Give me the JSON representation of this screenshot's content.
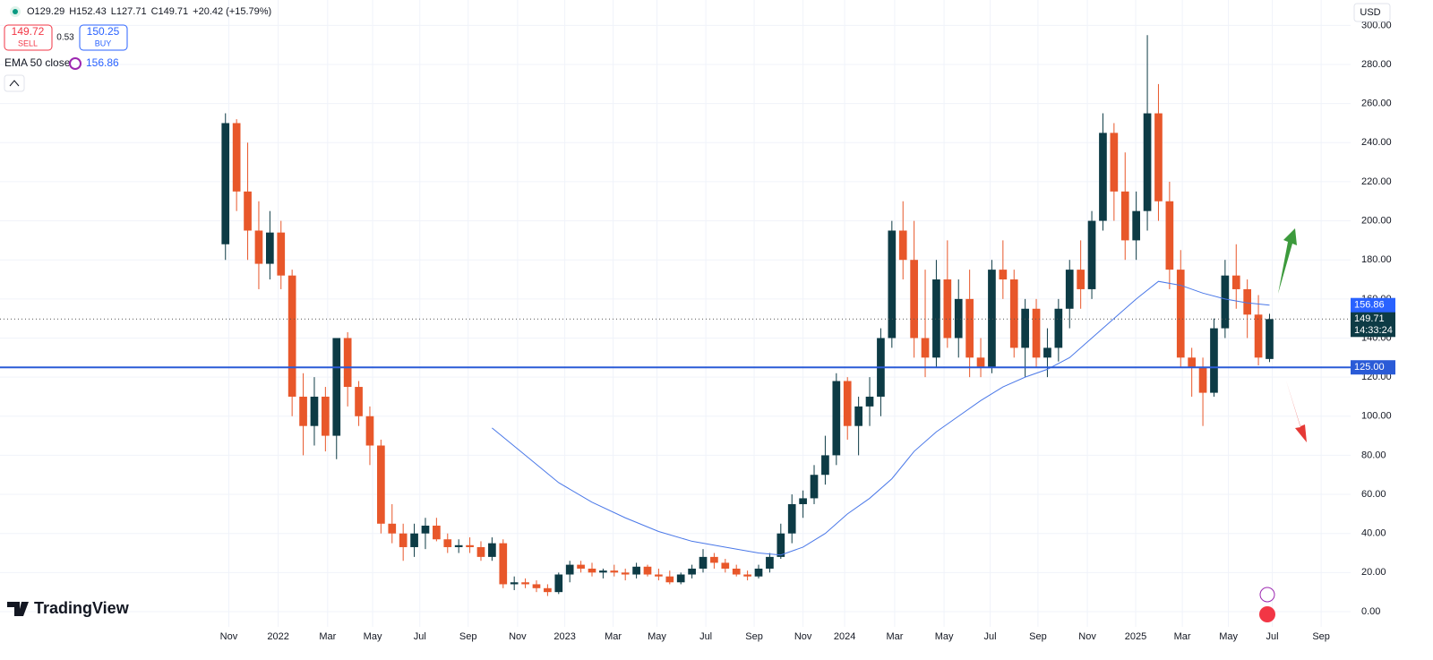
{
  "header": {
    "ohlc": [
      "O129.29",
      "H152.43",
      "L127.71",
      "C149.71"
    ],
    "change": "+20.42 (+15.79%)",
    "sell_price": "149.72",
    "sell": "SELL",
    "spread": "0.53",
    "buy_price": "150.25",
    "buy": "BUY",
    "currency": "USD",
    "brand": "TradingView"
  },
  "chart_data": {
    "type": "candlestick",
    "up_color": "#0d3b45",
    "down_color": "#e8572a",
    "grid": true,
    "x": [
      0,
      2,
      4,
      6,
      8,
      10,
      12,
      14,
      16,
      18,
      20,
      22,
      24,
      26,
      28,
      30,
      32,
      34,
      36,
      38,
      40,
      42,
      44,
      46,
      48,
      50,
      52,
      54,
      56,
      58,
      60,
      62,
      64,
      66,
      68,
      70,
      72,
      74,
      76,
      78,
      80,
      82,
      84,
      86,
      88,
      90,
      92,
      94,
      96,
      98,
      100,
      102,
      104,
      106,
      108,
      110,
      112,
      114,
      116,
      118,
      120,
      122,
      124,
      126,
      128,
      130,
      132,
      134,
      136,
      138,
      140,
      142,
      144,
      146,
      148,
      150,
      152,
      154,
      156,
      158,
      160,
      162,
      164,
      166,
      168,
      170,
      172,
      174,
      176,
      178,
      180,
      182,
      184,
      186,
      188
    ],
    "open": [
      188,
      250,
      215,
      195,
      178,
      194,
      172,
      110,
      95,
      110,
      90,
      140,
      115,
      100,
      85,
      45,
      40,
      33,
      40,
      44,
      37,
      33,
      34,
      33,
      28,
      35,
      14,
      15,
      14,
      12,
      10,
      19,
      24,
      22,
      20,
      21,
      20,
      19,
      23,
      19,
      18,
      15,
      19,
      22,
      28,
      25,
      22,
      19,
      18,
      22,
      28,
      40,
      55,
      58,
      70,
      80,
      118,
      95,
      105,
      110,
      140,
      195,
      180,
      140,
      130,
      170,
      140,
      160,
      130,
      125,
      175,
      170,
      135,
      155,
      130,
      135,
      155,
      175,
      165,
      200,
      245,
      215,
      190,
      205,
      255,
      210,
      175,
      130,
      125,
      112,
      145,
      172,
      165,
      152,
      129.29
    ],
    "high": [
      255,
      252,
      240,
      210,
      205,
      200,
      175,
      122,
      120,
      115,
      140,
      143,
      118,
      105,
      88,
      55,
      45,
      45,
      48,
      48,
      40,
      37,
      38,
      36,
      38,
      37,
      18,
      17,
      16,
      14,
      20,
      26,
      26,
      25,
      22,
      24,
      22,
      25,
      24,
      22,
      21,
      20,
      24,
      32,
      30,
      27,
      24,
      21,
      24,
      30,
      45,
      60,
      62,
      75,
      90,
      122,
      120,
      110,
      120,
      145,
      200,
      210,
      200,
      175,
      180,
      190,
      170,
      175,
      140,
      180,
      190,
      175,
      160,
      160,
      145,
      160,
      180,
      190,
      205,
      255,
      250,
      235,
      215,
      295,
      270,
      220,
      185,
      135,
      130,
      150,
      180,
      188,
      170,
      162,
      152.43
    ],
    "low": [
      180,
      205,
      180,
      165,
      170,
      165,
      100,
      80,
      85,
      82,
      78,
      105,
      95,
      75,
      40,
      35,
      26,
      28,
      32,
      36,
      30,
      30,
      30,
      26,
      26,
      12,
      11,
      12,
      10,
      8,
      9,
      15,
      20,
      18,
      17,
      18,
      16,
      17,
      18,
      16,
      14,
      14,
      17,
      20,
      22,
      20,
      18,
      16,
      17,
      20,
      27,
      35,
      48,
      55,
      65,
      75,
      88,
      80,
      95,
      100,
      135,
      170,
      130,
      120,
      125,
      135,
      130,
      120,
      120,
      122,
      160,
      130,
      120,
      125,
      120,
      128,
      145,
      155,
      160,
      195,
      200,
      180,
      180,
      195,
      200,
      165,
      125,
      110,
      95,
      110,
      140,
      155,
      140,
      126,
      127.71
    ],
    "close": [
      250,
      215,
      195,
      178,
      194,
      172,
      110,
      95,
      110,
      90,
      140,
      115,
      100,
      85,
      45,
      40,
      33,
      40,
      44,
      37,
      33,
      34,
      33,
      28,
      35,
      14,
      15,
      14,
      12,
      10,
      19,
      24,
      22,
      20,
      21,
      20,
      19,
      23,
      19,
      18,
      15,
      19,
      22,
      28,
      25,
      22,
      19,
      18,
      22,
      28,
      40,
      55,
      58,
      70,
      80,
      118,
      95,
      105,
      110,
      140,
      195,
      180,
      140,
      130,
      170,
      140,
      160,
      130,
      125,
      175,
      170,
      135,
      155,
      130,
      135,
      155,
      175,
      165,
      200,
      245,
      215,
      190,
      205,
      255,
      210,
      175,
      130,
      125,
      112,
      145,
      172,
      165,
      152,
      130,
      149.71
    ],
    "ema": {
      "name": "EMA 50 close",
      "color": "#4a78e8",
      "last_label": "156.86",
      "x": [
        48,
        54,
        60,
        66,
        72,
        78,
        84,
        90,
        96,
        100,
        104,
        108,
        112,
        116,
        120,
        124,
        128,
        132,
        136,
        140,
        144,
        148,
        152,
        156,
        160,
        164,
        168,
        172,
        176,
        180,
        184,
        188
      ],
      "values": [
        94,
        80,
        66,
        56,
        48,
        41,
        36,
        33,
        30,
        29,
        33,
        40,
        50,
        58,
        68,
        82,
        92,
        100,
        108,
        115,
        120,
        124,
        130,
        140,
        150,
        160,
        169,
        167,
        163,
        160,
        158,
        156.86
      ]
    },
    "hline": {
      "value": 125,
      "label": "125.00",
      "color": "#2a5bd7"
    },
    "last_price": {
      "value": 149.71,
      "label": "149.71",
      "countdown": "14:33:24"
    },
    "xlim": [
      -40.6,
      202.6
    ],
    "ylim": [
      -7.8,
      313
    ],
    "xticks": [
      {
        "value": 0.6,
        "label": "Nov"
      },
      {
        "value": 9.5,
        "label": "2022"
      },
      {
        "value": 18.4,
        "label": "Mar"
      },
      {
        "value": 26.5,
        "label": "May"
      },
      {
        "value": 35,
        "label": "Jul"
      },
      {
        "value": 43.7,
        "label": "Sep"
      },
      {
        "value": 52.6,
        "label": "Nov"
      },
      {
        "value": 61.1,
        "label": "2023"
      },
      {
        "value": 69.8,
        "label": "Mar"
      },
      {
        "value": 77.7,
        "label": "May"
      },
      {
        "value": 86.5,
        "label": "Jul"
      },
      {
        "value": 95.2,
        "label": "Sep"
      },
      {
        "value": 104,
        "label": "Nov"
      },
      {
        "value": 111.5,
        "label": "2024"
      },
      {
        "value": 120.5,
        "label": "Mar"
      },
      {
        "value": 129.4,
        "label": "May"
      },
      {
        "value": 137.7,
        "label": "Jul"
      },
      {
        "value": 146.3,
        "label": "Sep"
      },
      {
        "value": 155.2,
        "label": "Nov"
      },
      {
        "value": 163.9,
        "label": "2025"
      },
      {
        "value": 172.3,
        "label": "Mar"
      },
      {
        "value": 180.6,
        "label": "May"
      },
      {
        "value": 188.5,
        "label": "Jul"
      },
      {
        "value": 197.3,
        "label": "Sep"
      }
    ],
    "yticks": [
      {
        "value": 0,
        "label": "0.00"
      },
      {
        "value": 20,
        "label": "20.00"
      },
      {
        "value": 40,
        "label": "40.00"
      },
      {
        "value": 60,
        "label": "60.00"
      },
      {
        "value": 80,
        "label": "80.00"
      },
      {
        "value": 100,
        "label": "100.00"
      },
      {
        "value": 120,
        "label": "120.00"
      },
      {
        "value": 140,
        "label": "140.00"
      },
      {
        "value": 160,
        "label": "160.00"
      },
      {
        "value": 180,
        "label": "180.00"
      },
      {
        "value": 200,
        "label": "200.00"
      },
      {
        "value": 220,
        "label": "220.00"
      },
      {
        "value": 240,
        "label": "240.00"
      },
      {
        "value": 260,
        "label": "260.00"
      },
      {
        "value": 280,
        "label": "280.00"
      },
      {
        "value": 300,
        "label": "300.00"
      }
    ]
  }
}
